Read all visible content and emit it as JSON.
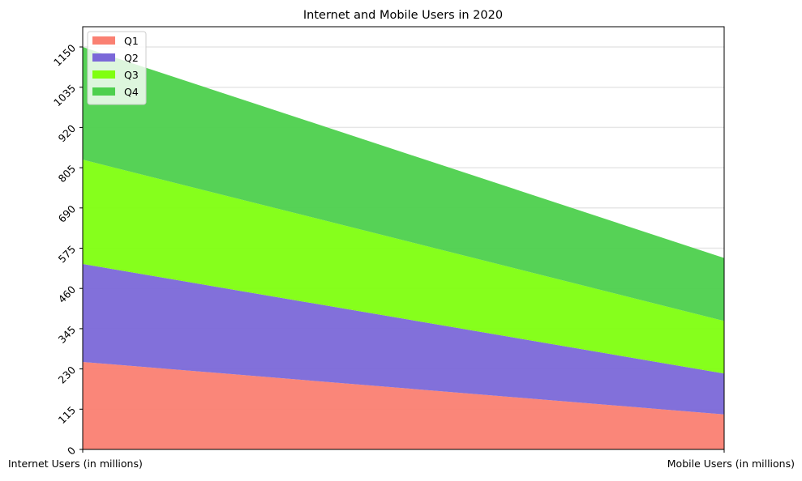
{
  "chart_data": {
    "type": "area",
    "stacked": true,
    "title": "Internet and Mobile Users in 2020",
    "xlabel": "",
    "ylabel": "",
    "categories": [
      "Internet Users (in millions)",
      "Mobile Users (in millions)"
    ],
    "series": [
      {
        "name": "Q1",
        "values": [
          250,
          100
        ],
        "color": "#fa8072"
      },
      {
        "name": "Q2",
        "values": [
          280,
          117
        ],
        "color": "#7b68d8"
      },
      {
        "name": "Q3",
        "values": [
          298,
          150
        ],
        "color": "#80ff10"
      },
      {
        "name": "Q4",
        "values": [
          322,
          180
        ],
        "color": "#4dd04d"
      }
    ],
    "ylim": [
      0,
      1150
    ],
    "yticks": [
      0,
      115,
      230,
      345,
      460,
      575,
      690,
      805,
      920,
      1035,
      1150
    ],
    "grid": true,
    "legend": "top-left"
  }
}
